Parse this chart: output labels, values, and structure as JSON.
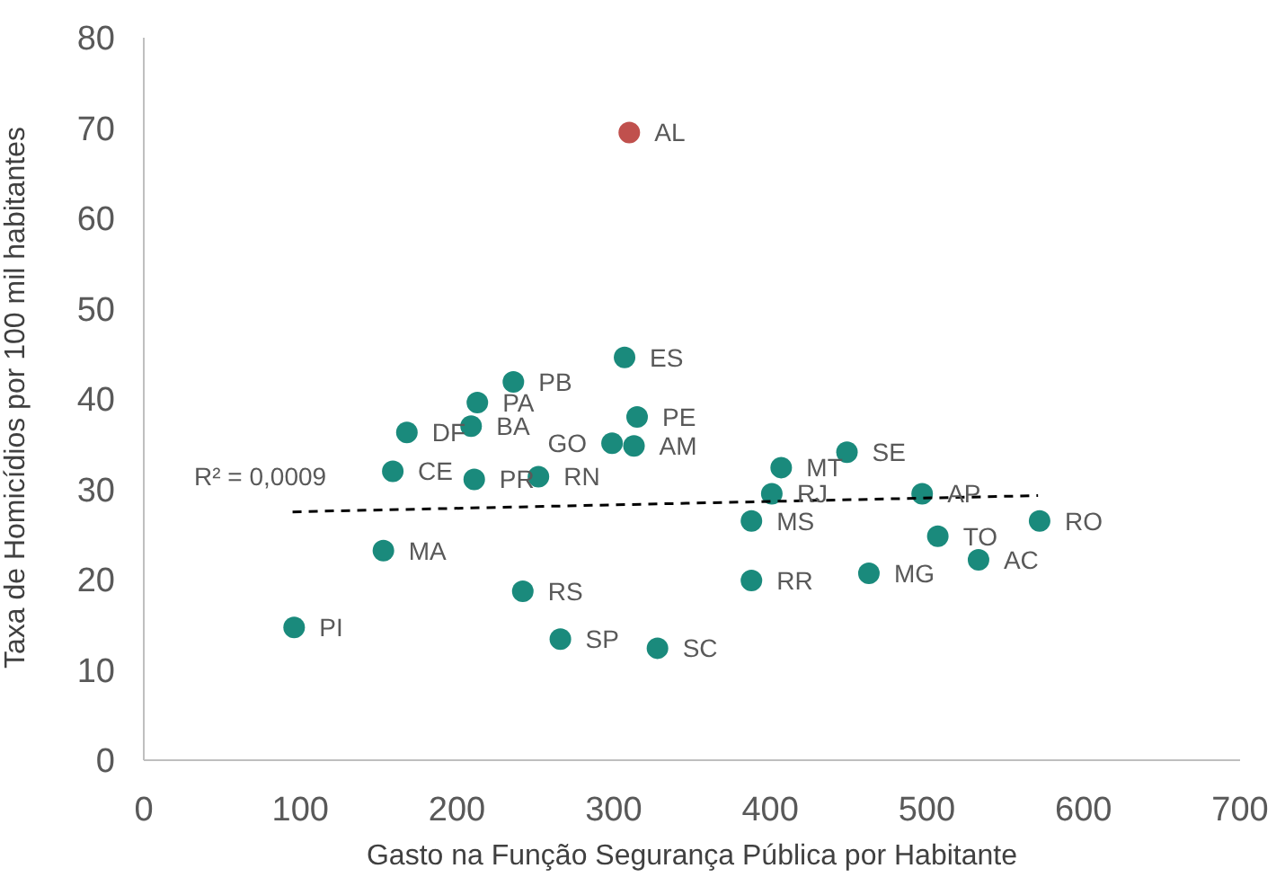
{
  "chart_data": {
    "type": "scatter",
    "xlabel": "Gasto na Função Segurança Pública por Habitante",
    "ylabel": "Taxa de Homicídios por 100 mil habitantes",
    "xlim": [
      0,
      700
    ],
    "xticks": [
      0,
      100,
      200,
      300,
      400,
      500,
      600,
      700
    ],
    "ylim": [
      0,
      80
    ],
    "yticks": [
      0,
      10,
      20,
      30,
      40,
      50,
      60,
      70,
      80
    ],
    "grid": false,
    "legend": false,
    "series": [
      {
        "marker": "circle",
        "color": "#1a8a7c",
        "x": [
          96,
          153,
          159,
          168,
          209,
          213,
          236,
          211,
          252,
          242,
          266,
          299,
          313,
          315,
          307,
          310,
          328,
          388,
          388,
          401,
          407,
          449,
          463,
          497,
          507,
          533,
          572
        ],
        "values": [
          14.7,
          23.2,
          32.0,
          36.3,
          37.0,
          39.6,
          41.9,
          31.1,
          31.4,
          18.7,
          13.4,
          35.1,
          34.8,
          38.0,
          44.6,
          69.5,
          12.4,
          19.9,
          26.5,
          29.5,
          32.4,
          34.1,
          20.7,
          29.5,
          24.8,
          22.2,
          26.5
        ],
        "colors": [
          "#1a8a7c",
          "#1a8a7c",
          "#1a8a7c",
          "#1a8a7c",
          "#1a8a7c",
          "#1a8a7c",
          "#1a8a7c",
          "#1a8a7c",
          "#1a8a7c",
          "#1a8a7c",
          "#1a8a7c",
          "#1a8a7c",
          "#1a8a7c",
          "#1a8a7c",
          "#1a8a7c",
          "#c0504d",
          "#1a8a7c",
          "#1a8a7c",
          "#1a8a7c",
          "#1a8a7c",
          "#1a8a7c",
          "#1a8a7c",
          "#1a8a7c",
          "#1a8a7c",
          "#1a8a7c",
          "#1a8a7c",
          "#1a8a7c"
        ]
      },
      {
        "type": "line",
        "marker": "none",
        "line_style": "dashed",
        "color": "#000000",
        "x": [
          95,
          571
        ],
        "values": [
          27.5,
          29.3
        ]
      }
    ],
    "annotations": [
      {
        "text": "PI",
        "x": 96,
        "y": 14.7
      },
      {
        "text": "MA",
        "x": 153,
        "y": 23.2
      },
      {
        "text": "CE",
        "x": 159,
        "y": 32.0
      },
      {
        "text": "DF",
        "x": 168,
        "y": 36.3
      },
      {
        "text": "BA",
        "x": 209,
        "y": 37.0
      },
      {
        "text": "PA",
        "x": 213,
        "y": 39.6
      },
      {
        "text": "PB",
        "x": 236,
        "y": 41.9
      },
      {
        "text": "PR",
        "x": 211,
        "y": 31.1
      },
      {
        "text": "RN",
        "x": 252,
        "y": 31.4
      },
      {
        "text": "RS",
        "x": 242,
        "y": 18.7
      },
      {
        "text": "SP",
        "x": 266,
        "y": 13.4
      },
      {
        "text": "GO",
        "x": 299,
        "y": 35.1
      },
      {
        "text": "AM",
        "x": 313,
        "y": 34.8
      },
      {
        "text": "PE",
        "x": 315,
        "y": 38.0
      },
      {
        "text": "ES",
        "x": 307,
        "y": 44.6
      },
      {
        "text": "AL",
        "x": 310,
        "y": 69.5
      },
      {
        "text": "SC",
        "x": 328,
        "y": 12.4
      },
      {
        "text": "RR",
        "x": 388,
        "y": 19.9
      },
      {
        "text": "MS",
        "x": 388,
        "y": 26.5
      },
      {
        "text": "RJ",
        "x": 401,
        "y": 29.5
      },
      {
        "text": "MT",
        "x": 407,
        "y": 32.4
      },
      {
        "text": "SE",
        "x": 449,
        "y": 34.1
      },
      {
        "text": "MG",
        "x": 463,
        "y": 20.7
      },
      {
        "text": "AP",
        "x": 497,
        "y": 29.5
      },
      {
        "text": "TO",
        "x": 507,
        "y": 24.8
      },
      {
        "text": "AC",
        "x": 533,
        "y": 22.2
      },
      {
        "text": "RO",
        "x": 572,
        "y": 26.5
      },
      "R² = 0,0009"
    ]
  }
}
